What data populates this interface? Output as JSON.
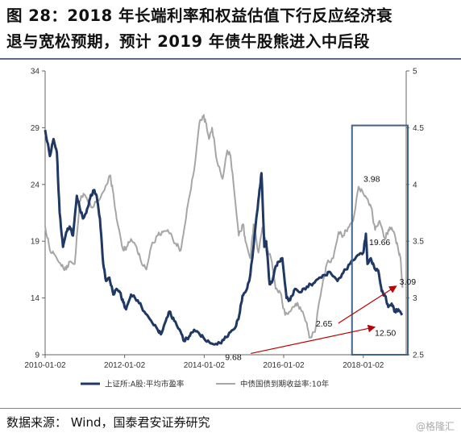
{
  "header": {
    "title_line1": "图 28：2018 年长端利率和权益估值下行反应经济衰",
    "title_line2": "退与宽松预期，预计 2019 年债牛股熊进入中后段"
  },
  "footer": {
    "source": "数据来源：  Wind，国泰君安证券研究",
    "watermark": "@格隆汇"
  },
  "colors": {
    "pe_series": "#1f3864",
    "yield_series": "#a6a6a6",
    "highlight_box": "#41648c",
    "arrow": "#c00000"
  },
  "chart_data": {
    "type": "line",
    "x_ticks": [
      "2010-01-02",
      "2012-01-02",
      "2014-01-02",
      "2016-01-02",
      "2018-01-02"
    ],
    "y_left": {
      "ticks": [
        9,
        14,
        19,
        24,
        29,
        34
      ],
      "range": [
        9,
        34
      ]
    },
    "y_right": {
      "ticks": [
        2.5,
        3,
        3.5,
        4,
        4.5,
        5
      ],
      "tick_labels": [
        "2.5",
        "3",
        "3.5",
        "4",
        "4.5",
        "5"
      ],
      "range": [
        2.5,
        5
      ]
    },
    "series": [
      {
        "name": "上证所:A股:平均市盈率",
        "axis": "left",
        "points": [
          [
            "2010-01-02",
            28.8
          ],
          [
            "2010-02-15",
            26.5
          ],
          [
            "2010-03-20",
            28.0
          ],
          [
            "2010-04-20",
            26.8
          ],
          [
            "2010-05-15",
            21.5
          ],
          [
            "2010-06-15",
            18.5
          ],
          [
            "2010-07-15",
            19.8
          ],
          [
            "2010-08-15",
            20.3
          ],
          [
            "2010-09-15",
            19.5
          ],
          [
            "2010-10-20",
            23.0
          ],
          [
            "2010-11-15",
            22.0
          ],
          [
            "2010-12-15",
            21.0
          ],
          [
            "2011-01-15",
            21.5
          ],
          [
            "2011-02-20",
            22.8
          ],
          [
            "2011-03-25",
            23.5
          ],
          [
            "2011-04-20",
            23.0
          ],
          [
            "2011-05-20",
            21.0
          ],
          [
            "2011-06-20",
            17.0
          ],
          [
            "2011-07-15",
            15.5
          ],
          [
            "2011-08-15",
            15.8
          ],
          [
            "2011-09-20",
            14.3
          ],
          [
            "2011-10-20",
            14.8
          ],
          [
            "2011-11-20",
            14.5
          ],
          [
            "2011-12-20",
            13.6
          ],
          [
            "2012-01-15",
            13.0
          ],
          [
            "2012-03-01",
            14.3
          ],
          [
            "2012-05-01",
            13.8
          ],
          [
            "2012-07-01",
            12.8
          ],
          [
            "2012-09-01",
            12.0
          ],
          [
            "2012-11-01",
            11.2
          ],
          [
            "2012-12-01",
            10.8
          ],
          [
            "2013-01-15",
            12.0
          ],
          [
            "2013-02-15",
            12.8
          ],
          [
            "2013-04-01",
            12.0
          ],
          [
            "2013-06-01",
            11.0
          ],
          [
            "2013-07-01",
            10.2
          ],
          [
            "2013-08-15",
            10.6
          ],
          [
            "2013-10-01",
            11.2
          ],
          [
            "2013-11-15",
            10.9
          ],
          [
            "2014-01-02",
            10.4
          ],
          [
            "2014-03-01",
            10.0
          ],
          [
            "2014-05-01",
            9.9
          ],
          [
            "2014-07-01",
            10.3
          ],
          [
            "2014-09-01",
            11.0
          ],
          [
            "2014-10-15",
            11.4
          ],
          [
            "2014-11-20",
            12.5
          ],
          [
            "2014-12-20",
            14.2
          ],
          [
            "2015-01-20",
            14.6
          ],
          [
            "2015-02-20",
            15.5
          ],
          [
            "2015-03-20",
            17.5
          ],
          [
            "2015-04-20",
            20.5
          ],
          [
            "2015-05-20",
            23.0
          ],
          [
            "2015-06-12",
            25.0
          ],
          [
            "2015-07-08",
            18.5
          ],
          [
            "2015-07-25",
            19.0
          ],
          [
            "2015-08-26",
            15.2
          ],
          [
            "2015-09-20",
            15.5
          ],
          [
            "2015-10-20",
            16.8
          ],
          [
            "2015-11-20",
            17.2
          ],
          [
            "2015-12-20",
            17.5
          ],
          [
            "2016-01-28",
            14.0
          ],
          [
            "2016-03-01",
            13.8
          ],
          [
            "2016-04-15",
            14.8
          ],
          [
            "2016-06-01",
            14.5
          ],
          [
            "2016-08-01",
            15.0
          ],
          [
            "2016-10-01",
            15.3
          ],
          [
            "2016-11-25",
            15.8
          ],
          [
            "2017-01-15",
            16.0
          ],
          [
            "2017-03-01",
            16.3
          ],
          [
            "2017-05-10",
            15.5
          ],
          [
            "2017-07-01",
            16.2
          ],
          [
            "2017-09-01",
            17.0
          ],
          [
            "2017-11-15",
            17.8
          ],
          [
            "2018-01-02",
            18.0
          ],
          [
            "2018-01-26",
            19.66
          ],
          [
            "2018-02-10",
            17.0
          ],
          [
            "2018-03-12",
            17.5
          ],
          [
            "2018-04-15",
            16.6
          ],
          [
            "2018-05-20",
            16.4
          ],
          [
            "2018-06-20",
            14.6
          ],
          [
            "2018-07-20",
            14.2
          ],
          [
            "2018-08-20",
            13.2
          ],
          [
            "2018-09-20",
            13.5
          ],
          [
            "2018-10-20",
            12.8
          ],
          [
            "2018-11-20",
            13.0
          ],
          [
            "2018-12-25",
            12.5
          ]
        ]
      },
      {
        "name": "中债国债到期收益率:10年",
        "axis": "right",
        "points": [
          [
            "2010-01-02",
            3.63
          ],
          [
            "2010-02-15",
            3.42
          ],
          [
            "2010-04-01",
            3.38
          ],
          [
            "2010-06-01",
            3.28
          ],
          [
            "2010-07-15",
            3.25
          ],
          [
            "2010-08-15",
            3.32
          ],
          [
            "2010-10-01",
            3.3
          ],
          [
            "2010-11-15",
            3.85
          ],
          [
            "2010-12-20",
            3.92
          ],
          [
            "2011-01-20",
            3.88
          ],
          [
            "2011-03-01",
            3.8
          ],
          [
            "2011-05-01",
            3.85
          ],
          [
            "2011-07-01",
            3.95
          ],
          [
            "2011-08-20",
            4.08
          ],
          [
            "2011-09-15",
            3.95
          ],
          [
            "2011-10-20",
            3.7
          ],
          [
            "2011-12-20",
            3.42
          ],
          [
            "2012-01-20",
            3.45
          ],
          [
            "2012-03-01",
            3.52
          ],
          [
            "2012-04-20",
            3.45
          ],
          [
            "2012-06-01",
            3.32
          ],
          [
            "2012-07-20",
            3.25
          ],
          [
            "2012-09-01",
            3.45
          ],
          [
            "2012-11-01",
            3.55
          ],
          [
            "2012-12-20",
            3.58
          ],
          [
            "2013-02-01",
            3.6
          ],
          [
            "2013-04-15",
            3.48
          ],
          [
            "2013-06-01",
            3.42
          ],
          [
            "2013-07-01",
            3.6
          ],
          [
            "2013-08-15",
            3.88
          ],
          [
            "2013-10-01",
            4.12
          ],
          [
            "2013-11-20",
            4.55
          ],
          [
            "2013-12-25",
            4.6
          ],
          [
            "2014-01-15",
            4.55
          ],
          [
            "2014-02-15",
            4.4
          ],
          [
            "2014-03-15",
            4.5
          ],
          [
            "2014-05-01",
            4.2
          ],
          [
            "2014-06-20",
            4.05
          ],
          [
            "2014-08-01",
            4.3
          ],
          [
            "2014-09-01",
            4.25
          ],
          [
            "2014-10-01",
            3.98
          ],
          [
            "2014-11-15",
            3.55
          ],
          [
            "2014-12-25",
            3.65
          ],
          [
            "2015-01-15",
            3.5
          ],
          [
            "2015-03-01",
            3.35
          ],
          [
            "2015-04-01",
            3.65
          ],
          [
            "2015-05-15",
            3.4
          ],
          [
            "2015-06-20",
            3.62
          ],
          [
            "2015-08-01",
            3.45
          ],
          [
            "2015-09-15",
            3.32
          ],
          [
            "2015-10-20",
            3.08
          ],
          [
            "2015-12-01",
            3.05
          ],
          [
            "2016-01-15",
            2.85
          ],
          [
            "2016-03-01",
            2.88
          ],
          [
            "2016-04-20",
            2.95
          ],
          [
            "2016-06-01",
            2.92
          ],
          [
            "2016-08-01",
            2.78
          ],
          [
            "2016-08-25",
            2.65
          ],
          [
            "2016-10-15",
            2.7
          ],
          [
            "2016-11-20",
            2.95
          ],
          [
            "2016-12-20",
            3.1
          ],
          [
            "2017-02-01",
            3.3
          ],
          [
            "2017-04-01",
            3.35
          ],
          [
            "2017-05-20",
            3.58
          ],
          [
            "2017-07-01",
            3.55
          ],
          [
            "2017-08-15",
            3.62
          ],
          [
            "2017-10-01",
            3.68
          ],
          [
            "2017-11-20",
            3.98
          ],
          [
            "2018-01-02",
            3.92
          ],
          [
            "2018-02-01",
            3.88
          ],
          [
            "2018-03-15",
            3.8
          ],
          [
            "2018-04-20",
            3.6
          ],
          [
            "2018-06-01",
            3.68
          ],
          [
            "2018-07-20",
            3.52
          ],
          [
            "2018-08-20",
            3.6
          ],
          [
            "2018-09-20",
            3.62
          ],
          [
            "2018-10-20",
            3.55
          ],
          [
            "2018-11-20",
            3.42
          ],
          [
            "2018-12-10",
            3.35
          ],
          [
            "2018-12-28",
            3.09
          ]
        ]
      }
    ],
    "annotations": [
      {
        "text": "3.98",
        "date": "2017-12-20",
        "value": 3.98,
        "axis": "right"
      },
      {
        "text": "19.66",
        "date": "2018-01-26",
        "value": 19.66,
        "axis": "left"
      },
      {
        "text": "3.09",
        "date": "2018-11-15",
        "value": 3.09,
        "axis": "right"
      },
      {
        "text": "2.65",
        "date": "2016-08-25",
        "value": 2.65,
        "axis": "right"
      },
      {
        "text": "12.50",
        "date": "2018-12-25",
        "value": 12.5,
        "axis": "left"
      },
      {
        "text": "9.68",
        "date": "2014-03-01",
        "value": 9.68,
        "axis": "left"
      }
    ],
    "highlight_range": [
      "2018-01-02",
      "2019-01-31"
    ],
    "legend": {
      "placement": "bottom"
    },
    "grid": false
  }
}
